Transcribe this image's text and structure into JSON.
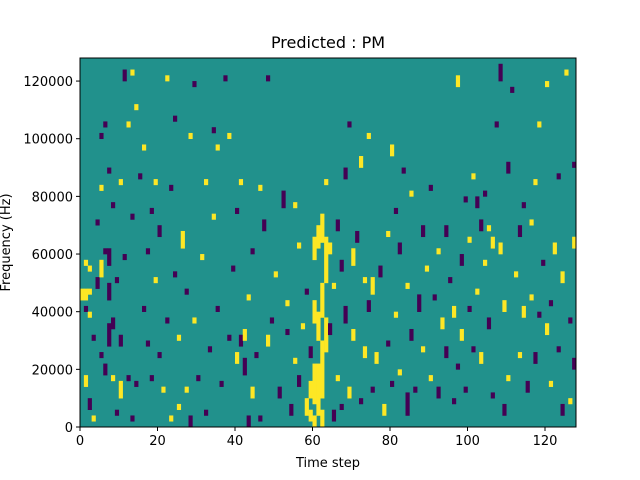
{
  "chart_data": {
    "type": "heatmap",
    "title": "Predicted : PM",
    "xlabel": "Time step",
    "ylabel": "Frequency (Hz)",
    "xlim": [
      0,
      128
    ],
    "ylim": [
      0,
      128000
    ],
    "x_ticks": [
      0,
      20,
      40,
      60,
      80,
      100,
      120
    ],
    "y_ticks": [
      0,
      20000,
      40000,
      60000,
      80000,
      100000,
      120000
    ],
    "grid": false,
    "legend": "none",
    "n_time_steps": 128,
    "n_freq_bins": 128,
    "value_levels": {
      "low": -1,
      "mid": 0,
      "high": 1
    },
    "colors": {
      "low": "#440154",
      "mid": "#21918c",
      "high": "#fde725"
    },
    "background_level": 0,
    "nonzero_cells": [
      [
        0,
        46000,
        2000,
        1
      ],
      [
        1,
        46000,
        2000,
        1
      ],
      [
        2,
        46000,
        2000,
        1
      ],
      [
        0,
        44000,
        2000,
        1
      ],
      [
        1,
        44000,
        2000,
        1
      ],
      [
        1,
        40000,
        2000,
        -1
      ],
      [
        2,
        38000,
        2000,
        1
      ],
      [
        1,
        56000,
        2000,
        1
      ],
      [
        2,
        54000,
        2000,
        1
      ],
      [
        1,
        14000,
        4000,
        1
      ],
      [
        2,
        6000,
        4000,
        -1
      ],
      [
        3,
        2000,
        2000,
        1
      ],
      [
        3,
        30000,
        2000,
        -1
      ],
      [
        4,
        48000,
        4000,
        -1
      ],
      [
        4,
        70000,
        2000,
        -1
      ],
      [
        5,
        24000,
        2000,
        -1
      ],
      [
        5,
        52000,
        6000,
        1
      ],
      [
        5,
        82000,
        2000,
        1
      ],
      [
        5,
        100000,
        2000,
        -1
      ],
      [
        6,
        18000,
        4000,
        -1
      ],
      [
        6,
        60000,
        2000,
        -1
      ],
      [
        6,
        104000,
        2000,
        -1
      ],
      [
        7,
        28000,
        8000,
        -1
      ],
      [
        7,
        44000,
        6000,
        -1
      ],
      [
        7,
        56000,
        6000,
        -1
      ],
      [
        7,
        88000,
        2000,
        -1
      ],
      [
        8,
        16000,
        2000,
        1
      ],
      [
        8,
        34000,
        4000,
        -1
      ],
      [
        8,
        76000,
        2000,
        -1
      ],
      [
        9,
        4000,
        2000,
        -1
      ],
      [
        9,
        50000,
        2000,
        -1
      ],
      [
        10,
        10000,
        6000,
        1
      ],
      [
        10,
        28000,
        4000,
        -1
      ],
      [
        10,
        84000,
        2000,
        1
      ],
      [
        11,
        120000,
        4000,
        -1
      ],
      [
        11,
        58000,
        2000,
        -1
      ],
      [
        12,
        104000,
        2000,
        1
      ],
      [
        12,
        16000,
        2000,
        -1
      ],
      [
        13,
        2000,
        2000,
        -1
      ],
      [
        13,
        72000,
        2000,
        -1
      ],
      [
        13,
        122000,
        2000,
        1
      ],
      [
        14,
        110000,
        2000,
        1
      ],
      [
        14,
        14000,
        2000,
        -1
      ],
      [
        15,
        86000,
        2000,
        -1
      ],
      [
        16,
        40000,
        2000,
        -1
      ],
      [
        16,
        96000,
        2000,
        1
      ],
      [
        17,
        28000,
        2000,
        -1
      ],
      [
        17,
        60000,
        2000,
        -1
      ],
      [
        18,
        16000,
        2000,
        -1
      ],
      [
        18,
        74000,
        2000,
        -1
      ],
      [
        19,
        84000,
        2000,
        1
      ],
      [
        19,
        50000,
        2000,
        1
      ],
      [
        20,
        24000,
        2000,
        -1
      ],
      [
        20,
        66000,
        4000,
        -1
      ],
      [
        21,
        12000,
        2000,
        1
      ],
      [
        22,
        120000,
        2000,
        1
      ],
      [
        22,
        36000,
        2000,
        -1
      ],
      [
        23,
        2000,
        2000,
        1
      ],
      [
        23,
        82000,
        2000,
        -1
      ],
      [
        24,
        52000,
        2000,
        -1
      ],
      [
        24,
        106000,
        2000,
        -1
      ],
      [
        25,
        6000,
        2000,
        1
      ],
      [
        25,
        30000,
        2000,
        1
      ],
      [
        26,
        62000,
        6000,
        1
      ],
      [
        27,
        46000,
        2000,
        -1
      ],
      [
        27,
        12000,
        2000,
        1
      ],
      [
        28,
        0,
        4000,
        -1
      ],
      [
        28,
        100000,
        2000,
        1
      ],
      [
        29,
        36000,
        2000,
        1
      ],
      [
        29,
        118000,
        2000,
        -1
      ],
      [
        30,
        16000,
        2000,
        -1
      ],
      [
        31,
        58000,
        2000,
        1
      ],
      [
        32,
        4000,
        2000,
        -1
      ],
      [
        32,
        84000,
        2000,
        1
      ],
      [
        33,
        26000,
        2000,
        -1
      ],
      [
        34,
        72000,
        2000,
        1
      ],
      [
        34,
        102000,
        2000,
        -1
      ],
      [
        35,
        96000,
        2000,
        1
      ],
      [
        35,
        40000,
        2000,
        -1
      ],
      [
        36,
        14000,
        2000,
        -1
      ],
      [
        37,
        120000,
        2000,
        -1
      ],
      [
        38,
        30000,
        2000,
        -1
      ],
      [
        38,
        100000,
        2000,
        1
      ],
      [
        39,
        54000,
        2000,
        -1
      ],
      [
        40,
        22000,
        4000,
        1
      ],
      [
        40,
        74000,
        2000,
        -1
      ],
      [
        41,
        28000,
        4000,
        -1
      ],
      [
        41,
        84000,
        2000,
        1
      ],
      [
        42,
        30000,
        4000,
        1
      ],
      [
        42,
        18000,
        6000,
        -1
      ],
      [
        43,
        44000,
        2000,
        1
      ],
      [
        43,
        0,
        4000,
        -1
      ],
      [
        44,
        60000,
        2000,
        -1
      ],
      [
        44,
        10000,
        4000,
        1
      ],
      [
        45,
        24000,
        2000,
        -1
      ],
      [
        46,
        82000,
        2000,
        1
      ],
      [
        46,
        2000,
        2000,
        -1
      ],
      [
        47,
        68000,
        4000,
        -1
      ],
      [
        48,
        28000,
        4000,
        1
      ],
      [
        48,
        120000,
        2000,
        -1
      ],
      [
        49,
        36000,
        2000,
        -1
      ],
      [
        50,
        52000,
        2000,
        1
      ],
      [
        51,
        10000,
        4000,
        -1
      ],
      [
        52,
        76000,
        6000,
        -1
      ],
      [
        53,
        42000,
        2000,
        1
      ],
      [
        53,
        32000,
        2000,
        -1
      ],
      [
        54,
        4000,
        4000,
        -1
      ],
      [
        55,
        22000,
        2000,
        1
      ],
      [
        55,
        76000,
        2000,
        1
      ],
      [
        56,
        62000,
        2000,
        1
      ],
      [
        56,
        14000,
        4000,
        -1
      ],
      [
        57,
        34000,
        2000,
        1
      ],
      [
        58,
        4000,
        6000,
        1
      ],
      [
        58,
        46000,
        2000,
        -1
      ],
      [
        59,
        2000,
        4000,
        1
      ],
      [
        59,
        10000,
        6000,
        1
      ],
      [
        59,
        24000,
        4000,
        -1
      ],
      [
        60,
        0,
        4000,
        1
      ],
      [
        60,
        8000,
        14000,
        1
      ],
      [
        60,
        36000,
        8000,
        1
      ],
      [
        60,
        58000,
        8000,
        1
      ],
      [
        61,
        4000,
        18000,
        1
      ],
      [
        61,
        30000,
        10000,
        1
      ],
      [
        61,
        62000,
        8000,
        1
      ],
      [
        62,
        0,
        6000,
        1
      ],
      [
        62,
        10000,
        20000,
        1
      ],
      [
        62,
        38000,
        12000,
        1
      ],
      [
        62,
        64000,
        10000,
        1
      ],
      [
        63,
        26000,
        12000,
        1
      ],
      [
        63,
        50000,
        16000,
        1
      ],
      [
        63,
        84000,
        2000,
        1
      ],
      [
        64,
        32000,
        4000,
        -1
      ],
      [
        64,
        60000,
        4000,
        1
      ],
      [
        65,
        2000,
        4000,
        -1
      ],
      [
        65,
        48000,
        2000,
        1
      ],
      [
        66,
        68000,
        4000,
        -1
      ],
      [
        66,
        16000,
        2000,
        1
      ],
      [
        67,
        54000,
        4000,
        -1
      ],
      [
        67,
        6000,
        2000,
        -1
      ],
      [
        68,
        36000,
        6000,
        -1
      ],
      [
        68,
        86000,
        4000,
        -1
      ],
      [
        69,
        10000,
        4000,
        1
      ],
      [
        69,
        104000,
        2000,
        -1
      ],
      [
        70,
        56000,
        6000,
        1
      ],
      [
        70,
        30000,
        4000,
        1
      ],
      [
        71,
        64000,
        4000,
        -1
      ],
      [
        72,
        8000,
        2000,
        -1
      ],
      [
        72,
        90000,
        4000,
        1
      ],
      [
        73,
        50000,
        2000,
        1
      ],
      [
        73,
        24000,
        4000,
        1
      ],
      [
        74,
        100000,
        2000,
        1
      ],
      [
        74,
        40000,
        4000,
        -1
      ],
      [
        75,
        46000,
        6000,
        1
      ],
      [
        75,
        12000,
        2000,
        -1
      ],
      [
        76,
        22000,
        4000,
        1
      ],
      [
        77,
        52000,
        4000,
        -1
      ],
      [
        78,
        4000,
        4000,
        1
      ],
      [
        79,
        66000,
        2000,
        1
      ],
      [
        79,
        28000,
        2000,
        -1
      ],
      [
        80,
        94000,
        4000,
        1
      ],
      [
        80,
        14000,
        2000,
        -1
      ],
      [
        81,
        38000,
        2000,
        1
      ],
      [
        81,
        74000,
        2000,
        -1
      ],
      [
        82,
        18000,
        2000,
        1
      ],
      [
        82,
        60000,
        4000,
        -1
      ],
      [
        83,
        88000,
        2000,
        -1
      ],
      [
        84,
        4000,
        8000,
        -1
      ],
      [
        84,
        48000,
        2000,
        1
      ],
      [
        85,
        80000,
        2000,
        1
      ],
      [
        85,
        30000,
        4000,
        -1
      ],
      [
        86,
        12000,
        2000,
        -1
      ],
      [
        87,
        40000,
        6000,
        -1
      ],
      [
        88,
        66000,
        4000,
        -1
      ],
      [
        88,
        26000,
        2000,
        1
      ],
      [
        89,
        54000,
        2000,
        1
      ],
      [
        90,
        16000,
        2000,
        1
      ],
      [
        90,
        82000,
        2000,
        -1
      ],
      [
        91,
        44000,
        2000,
        -1
      ],
      [
        92,
        60000,
        2000,
        1
      ],
      [
        92,
        10000,
        4000,
        -1
      ],
      [
        93,
        34000,
        4000,
        1
      ],
      [
        94,
        66000,
        4000,
        -1
      ],
      [
        94,
        24000,
        4000,
        -1
      ],
      [
        95,
        50000,
        2000,
        -1
      ],
      [
        96,
        8000,
        2000,
        -1
      ],
      [
        96,
        38000,
        4000,
        1
      ],
      [
        97,
        118000,
        4000,
        1
      ],
      [
        97,
        20000,
        2000,
        -1
      ],
      [
        98,
        56000,
        4000,
        -1
      ],
      [
        98,
        30000,
        4000,
        1
      ],
      [
        99,
        78000,
        2000,
        -1
      ],
      [
        99,
        12000,
        2000,
        -1
      ],
      [
        100,
        40000,
        2000,
        -1
      ],
      [
        100,
        64000,
        2000,
        1
      ],
      [
        101,
        26000,
        2000,
        -1
      ],
      [
        101,
        86000,
        2000,
        1
      ],
      [
        102,
        46000,
        2000,
        1
      ],
      [
        102,
        76000,
        4000,
        -1
      ],
      [
        103,
        22000,
        4000,
        1
      ],
      [
        103,
        68000,
        4000,
        -1
      ],
      [
        104,
        56000,
        2000,
        1
      ],
      [
        104,
        80000,
        2000,
        -1
      ],
      [
        105,
        34000,
        4000,
        -1
      ],
      [
        105,
        68000,
        2000,
        1
      ],
      [
        106,
        10000,
        2000,
        -1
      ],
      [
        106,
        62000,
        4000,
        1
      ],
      [
        107,
        104000,
        2000,
        -1
      ],
      [
        108,
        120000,
        6000,
        -1
      ],
      [
        108,
        60000,
        4000,
        1
      ],
      [
        109,
        4000,
        4000,
        -1
      ],
      [
        109,
        40000,
        4000,
        1
      ],
      [
        110,
        88000,
        4000,
        -1
      ],
      [
        110,
        16000,
        2000,
        1
      ],
      [
        111,
        116000,
        2000,
        -1
      ],
      [
        112,
        52000,
        2000,
        1
      ],
      [
        113,
        24000,
        2000,
        1
      ],
      [
        113,
        66000,
        4000,
        -1
      ],
      [
        114,
        76000,
        2000,
        -1
      ],
      [
        114,
        38000,
        4000,
        1
      ],
      [
        115,
        12000,
        4000,
        -1
      ],
      [
        116,
        44000,
        2000,
        1
      ],
      [
        116,
        70000,
        2000,
        1
      ],
      [
        117,
        84000,
        2000,
        1
      ],
      [
        117,
        22000,
        4000,
        -1
      ],
      [
        118,
        38000,
        2000,
        -1
      ],
      [
        118,
        104000,
        2000,
        1
      ],
      [
        119,
        56000,
        2000,
        -1
      ],
      [
        120,
        32000,
        4000,
        1
      ],
      [
        120,
        118000,
        2000,
        1
      ],
      [
        121,
        14000,
        2000,
        1
      ],
      [
        121,
        42000,
        2000,
        -1
      ],
      [
        122,
        60000,
        4000,
        1
      ],
      [
        123,
        26000,
        2000,
        -1
      ],
      [
        123,
        86000,
        2000,
        -1
      ],
      [
        124,
        50000,
        4000,
        1
      ],
      [
        124,
        4000,
        4000,
        -1
      ],
      [
        125,
        122000,
        2000,
        1
      ],
      [
        126,
        36000,
        2000,
        -1
      ],
      [
        126,
        8000,
        2000,
        1
      ],
      [
        127,
        20000,
        4000,
        -1
      ],
      [
        127,
        62000,
        4000,
        1
      ],
      [
        127,
        90000,
        2000,
        -1
      ]
    ]
  }
}
